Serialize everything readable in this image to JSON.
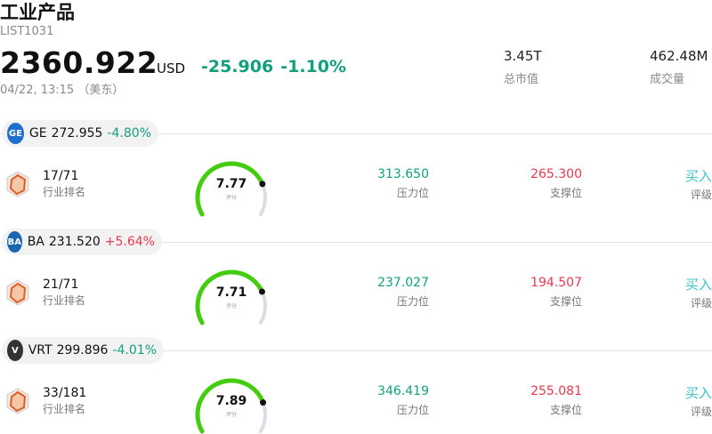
{
  "header": {
    "title": "工业产品",
    "code": "LIST1031",
    "price": "2360.922",
    "currency": "USD",
    "change": "-25.906",
    "change_pct": "-1.10%",
    "timestamp": "04/22, 13:15 （美东）"
  },
  "stats": [
    {
      "value": "3.45T",
      "label": "总市值"
    },
    {
      "value": "462.48M",
      "label": "成交量"
    }
  ],
  "colors": {
    "down": "#149e7e",
    "up": "#e8384f",
    "gauge": "#44cc11",
    "buy": "#40c0c8"
  },
  "stocks": [
    {
      "ticker": "GE",
      "price": "272.955",
      "change_pct": "-4.80%",
      "direction": "down",
      "logo_icon": "ge-logo-icon",
      "logo_text": "GE",
      "logo_color": "#1f6fcf",
      "rank": "17/71",
      "rank_label": "行业排名",
      "score": 7.77,
      "score_text": "7.77",
      "score_label": "评分",
      "resistance": "313.650",
      "resistance_label": "压力位",
      "support": "265.300",
      "support_label": "支撑位",
      "rating": "买入",
      "rating_label": "评级"
    },
    {
      "ticker": "BA",
      "price": "231.520",
      "change_pct": "+5.64%",
      "direction": "up",
      "logo_icon": "boeing-logo-icon",
      "logo_text": "BA",
      "logo_color": "#1a66b0",
      "rank": "21/71",
      "rank_label": "行业排名",
      "score": 7.71,
      "score_text": "7.71",
      "score_label": "评分",
      "resistance": "237.027",
      "resistance_label": "压力位",
      "support": "194.507",
      "support_label": "支撑位",
      "rating": "买入",
      "rating_label": "评级"
    },
    {
      "ticker": "VRT",
      "price": "299.896",
      "change_pct": "-4.01%",
      "direction": "down",
      "logo_icon": "vertiv-logo-icon",
      "logo_text": "V",
      "logo_color": "#333333",
      "rank": "33/181",
      "rank_label": "行业排名",
      "score": 7.89,
      "score_text": "7.89",
      "score_label": "评分",
      "resistance": "346.419",
      "resistance_label": "压力位",
      "support": "255.081",
      "support_label": "支撑位",
      "rating": "买入",
      "rating_label": "评级"
    }
  ]
}
